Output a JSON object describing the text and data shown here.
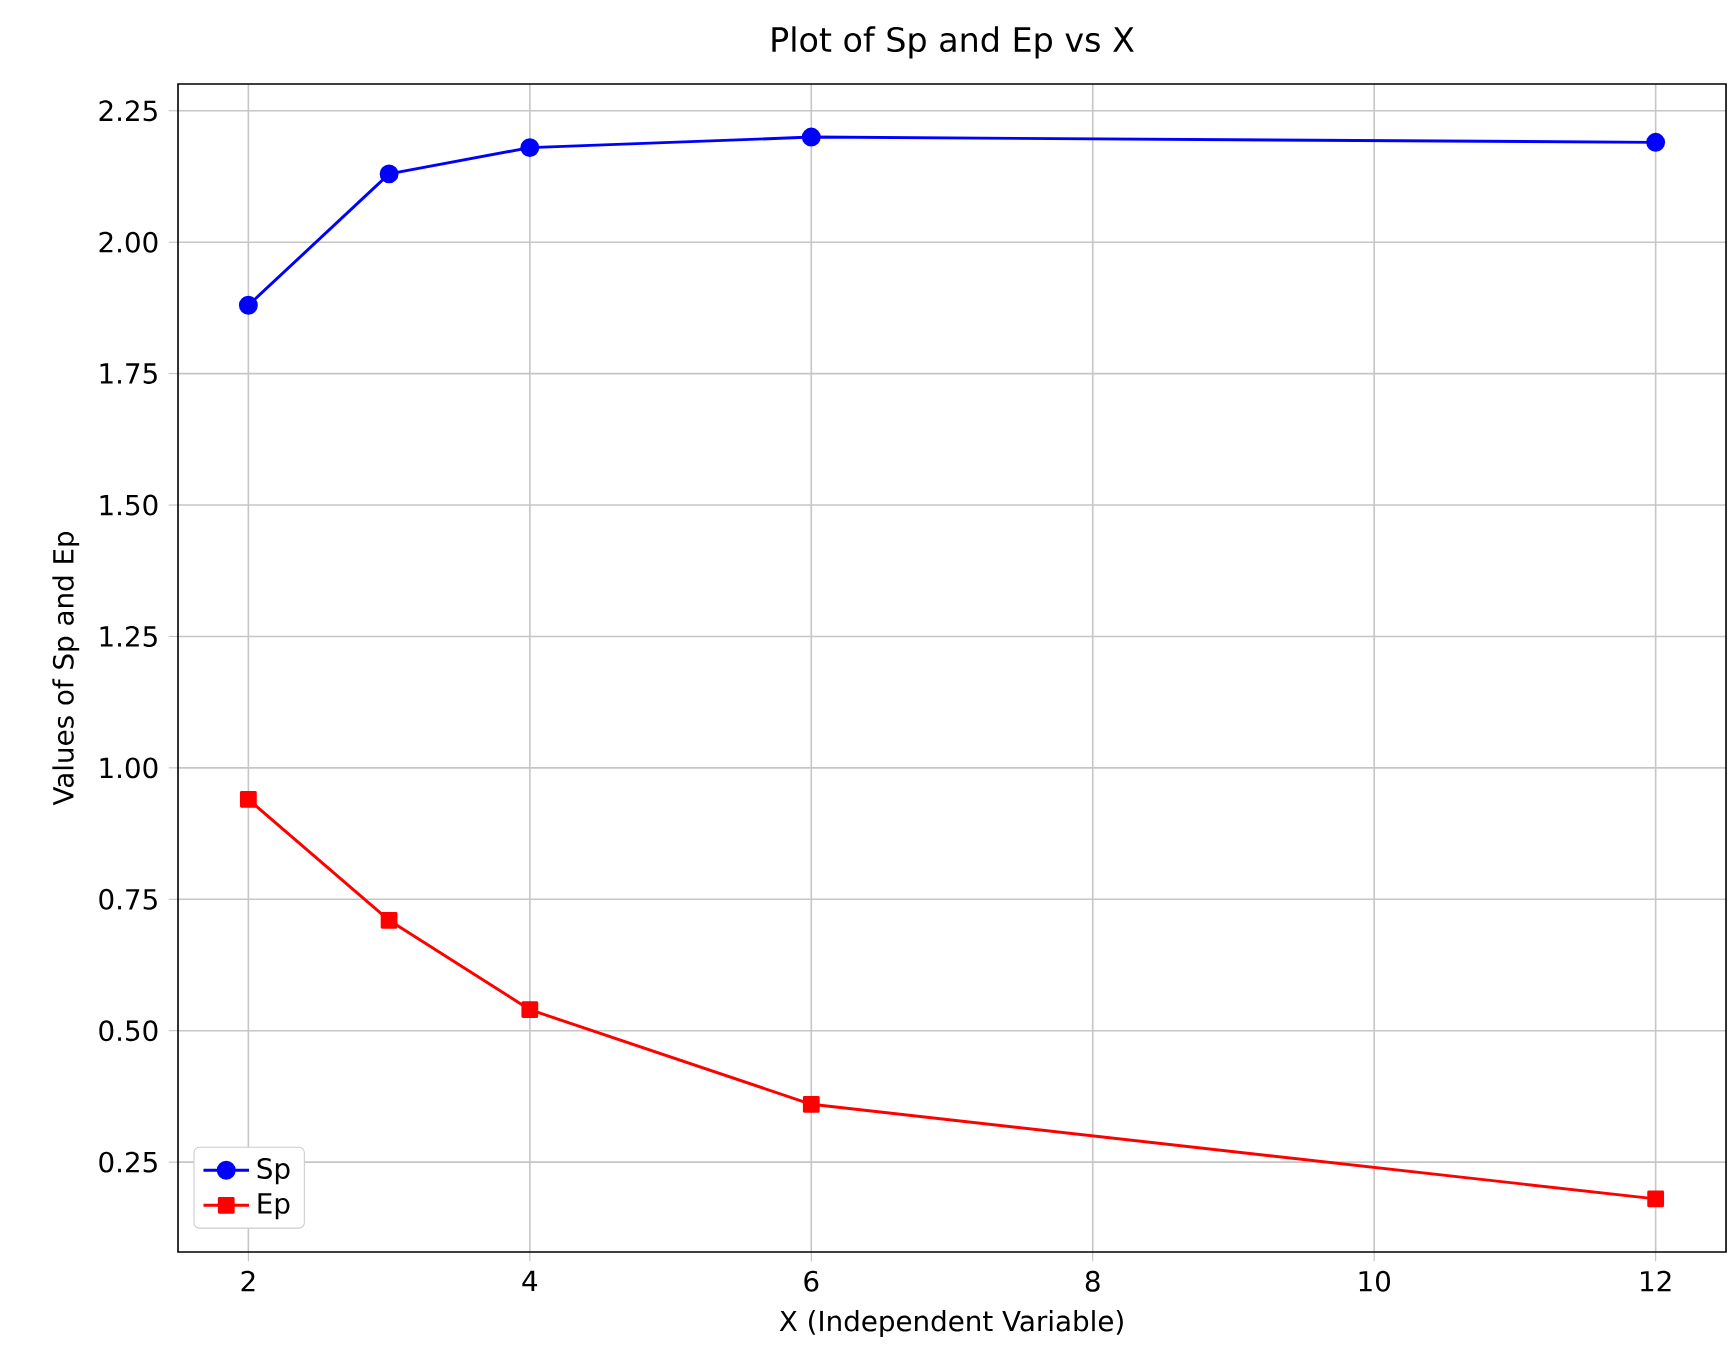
{
  "chart_data": {
    "type": "line",
    "title": "Plot of Sp and Ep vs X",
    "xlabel": "X (Independent Variable)",
    "ylabel": "Values of Sp and Ep",
    "x": [
      2,
      3,
      4,
      6,
      12
    ],
    "series": [
      {
        "name": "Sp",
        "color": "#0000ff",
        "marker": "circle",
        "values": [
          1.88,
          2.13,
          2.18,
          2.2,
          2.19
        ]
      },
      {
        "name": "Ep",
        "color": "#ff0000",
        "marker": "square",
        "values": [
          0.94,
          0.71,
          0.54,
          0.36,
          0.18
        ]
      }
    ],
    "xlim": [
      1.5,
      12.5
    ],
    "ylim": [
      0.079,
      2.301
    ],
    "xticks": [
      2,
      4,
      6,
      8,
      10,
      12
    ],
    "yticks": [
      {
        "value": 0.25,
        "label": "0.25"
      },
      {
        "value": 0.5,
        "label": "0.50"
      },
      {
        "value": 0.75,
        "label": "0.75"
      },
      {
        "value": 1.0,
        "label": "1.00"
      },
      {
        "value": 1.25,
        "label": "1.25"
      },
      {
        "value": 1.5,
        "label": "1.50"
      },
      {
        "value": 1.75,
        "label": "1.75"
      },
      {
        "value": 2.0,
        "label": "2.00"
      },
      {
        "value": 2.25,
        "label": "2.25"
      }
    ],
    "grid": true,
    "legend": "bottom left",
    "line_style": "solid"
  }
}
